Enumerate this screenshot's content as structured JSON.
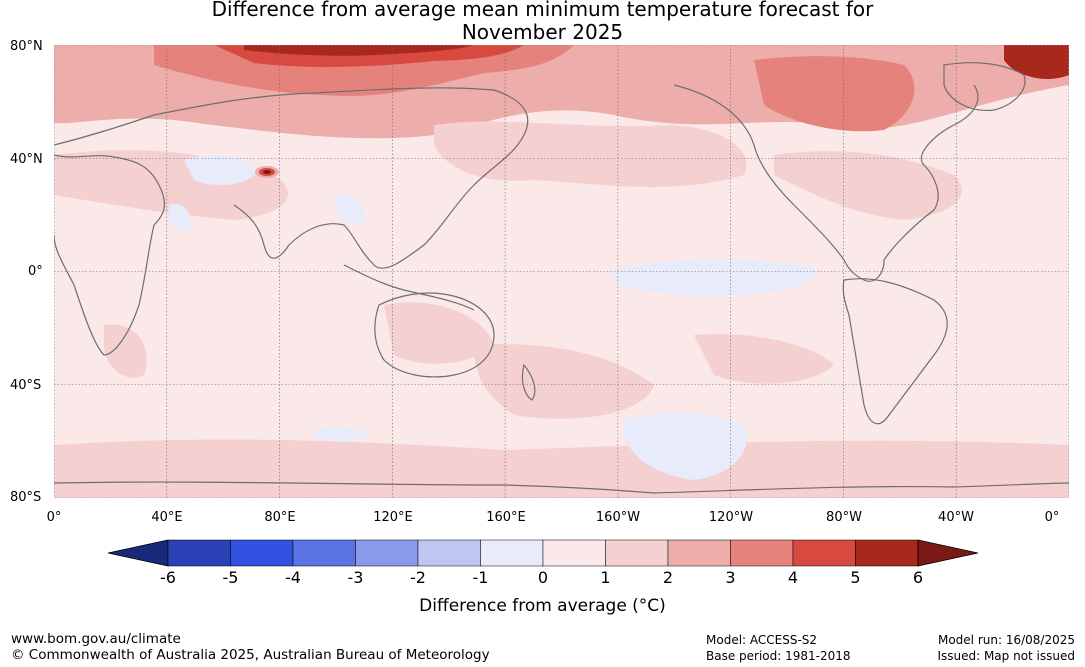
{
  "title_line1": "Difference from average mean minimum temperature forecast for",
  "title_line2": "November 2025",
  "map": {
    "lat_labels": [
      "80°N",
      "40°N",
      "0°",
      "40°S",
      "80°S"
    ],
    "lon_labels": [
      "0°",
      "40°E",
      "80°E",
      "120°E",
      "160°E",
      "160°W",
      "120°W",
      "80°W",
      "40°W",
      "0°"
    ],
    "lat_values": [
      80,
      40,
      0,
      -40,
      -80
    ],
    "lon_values": [
      0,
      40,
      80,
      120,
      160,
      200,
      240,
      280,
      320,
      360
    ]
  },
  "colorbar": {
    "ticks": [
      "-6",
      "-5",
      "-4",
      "-3",
      "-2",
      "-1",
      "0",
      "1",
      "2",
      "3",
      "4",
      "5",
      "6"
    ],
    "colors": [
      "#1a2a7a",
      "#2b41b8",
      "#3152e0",
      "#5a74e6",
      "#8a9aea",
      "#c0c6f2",
      "#e8ebfa",
      "#fbe9e9",
      "#f4d0d0",
      "#ecadab",
      "#e6827c",
      "#d84a40",
      "#a8281e",
      "#7a1a14"
    ],
    "label": "Difference from average (°C)"
  },
  "footer": {
    "website": "www.bom.gov.au/climate",
    "copyright": "© Commonwealth of Australia 2025, Australian Bureau of Meteorology",
    "model": "Model: ACCESS-S2",
    "base_period": "Base period: 1981-2018",
    "model_run": "Model run: 16/08/2025",
    "issued": "Issued: Map not issued"
  }
}
